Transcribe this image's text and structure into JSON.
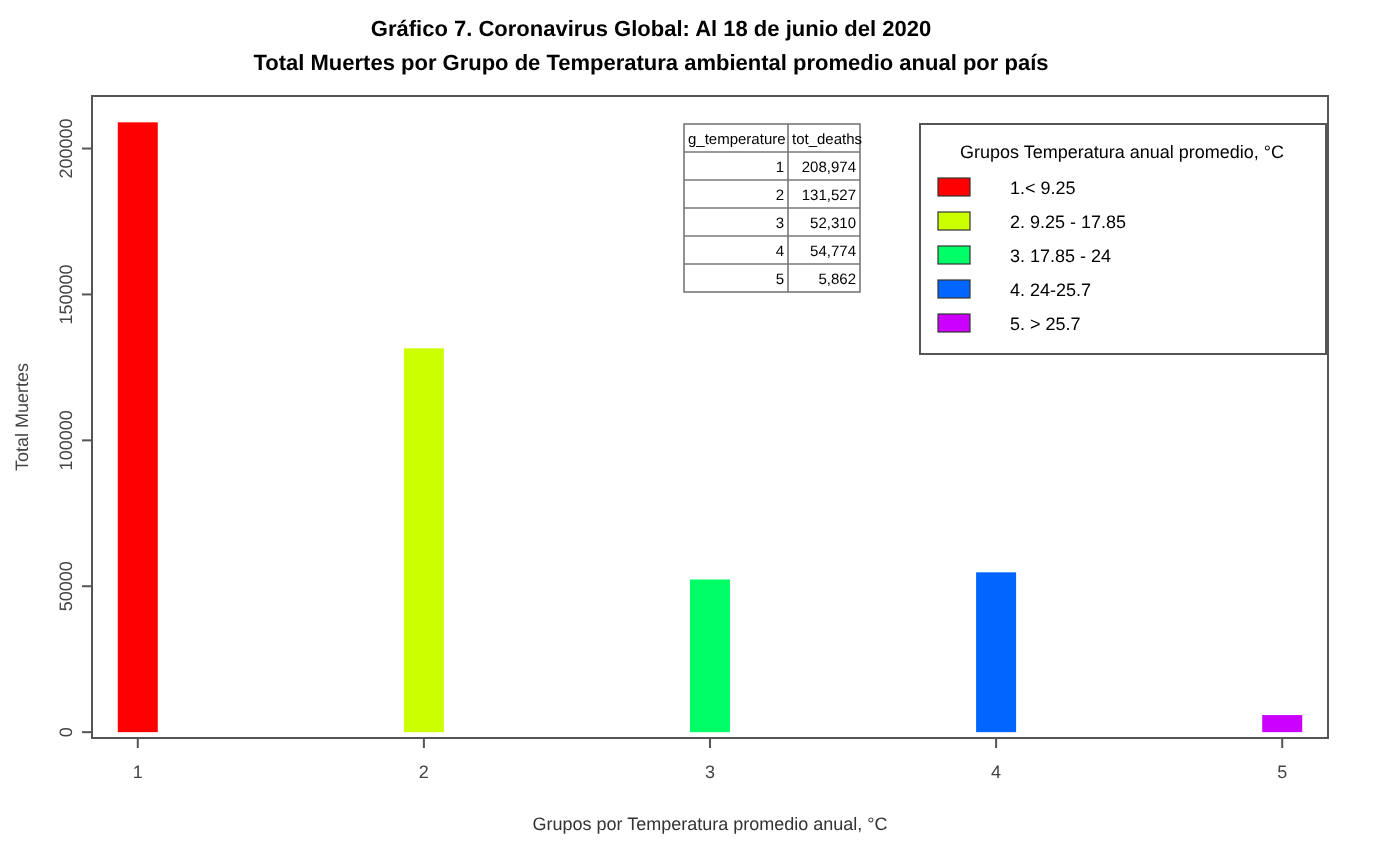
{
  "chart_data": {
    "type": "bar",
    "title": "Gráfico 7. Coronavirus Global: Al 18 de junio del 2020",
    "subtitle": "Total Muertes por Grupo de Temperatura ambiental promedio anual por país",
    "xlabel": "Grupos por Temperatura promedio anual, °C",
    "ylabel": "Total Muertes",
    "legend_title": "Grupos Temperatura anual promedio, °C",
    "annotations": [
      "g_temperature",
      "tot_deaths",
      "208,974",
      "131,527",
      "52,310",
      "54,774",
      "5,862"
    ],
    "categories": [
      "1",
      "2",
      "3",
      "4",
      "5"
    ],
    "series": [
      {
        "name": "1.< 9.25",
        "color": "#ff0000",
        "values": [
          208974,
          null,
          null,
          null,
          null
        ]
      },
      {
        "name": "2. 9.25 - 17.85",
        "color": "#ccff00",
        "values": [
          null,
          131527,
          null,
          null,
          null
        ]
      },
      {
        "name": "3. 17.85 - 24",
        "color": "#00ff66",
        "values": [
          null,
          null,
          52310,
          null,
          null
        ]
      },
      {
        "name": "4. 24-25.7",
        "color": "#0066ff",
        "values": [
          null,
          null,
          null,
          54774,
          null
        ]
      },
      {
        "name": "5. > 25.7",
        "color": "#cc00ff",
        "values": [
          null,
          null,
          null,
          null,
          5862
        ]
      }
    ],
    "ylim": [
      -2000,
      218000
    ],
    "yticks": [
      0,
      50000,
      100000,
      150000,
      200000
    ],
    "legend": "top right"
  }
}
